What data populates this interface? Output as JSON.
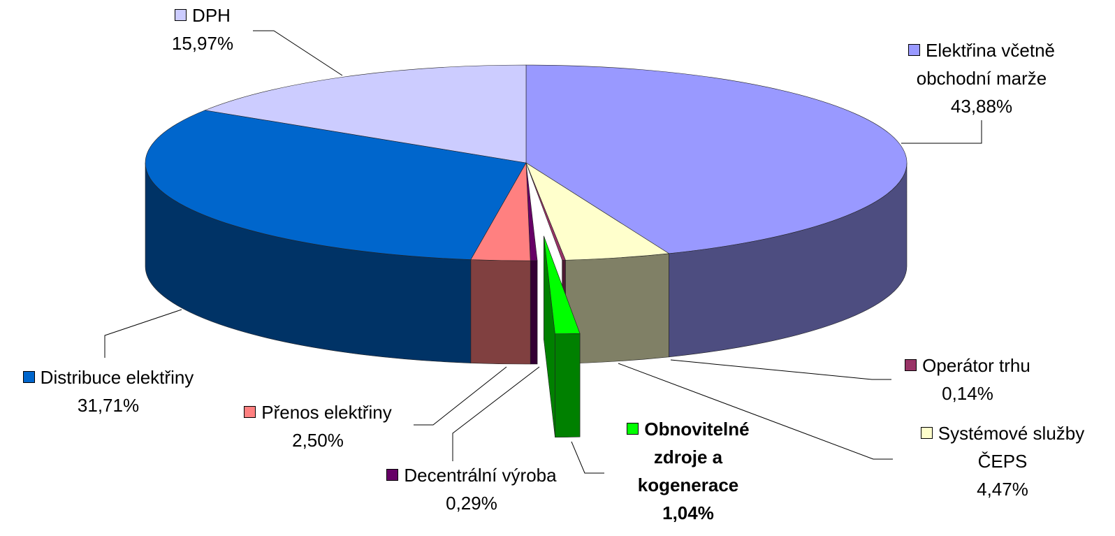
{
  "chart_data": {
    "type": "pie",
    "categories": [
      "Elektřina včetně obchodní marže",
      "Systémové služby ČEPS",
      "Operátor trhu",
      "Obnovitelné zdroje a kogenerace",
      "Decentrální výroba",
      "Přenos elektřiny",
      "Distribuce elektřiny",
      "DPH"
    ],
    "values": [
      43.88,
      4.47,
      0.14,
      1.04,
      0.29,
      2.5,
      31.71,
      15.97
    ],
    "value_labels": [
      "43,88%",
      "4,47%",
      "0,14%",
      "1,04%",
      "0,29%",
      "2,50%",
      "31,71%",
      "15,97%"
    ],
    "colors": [
      "#9999ff",
      "#ffffcc",
      "#993366",
      "#00ff00",
      "#660066",
      "#ff8080",
      "#0066cc",
      "#ccccff"
    ],
    "exploded": 3
  }
}
